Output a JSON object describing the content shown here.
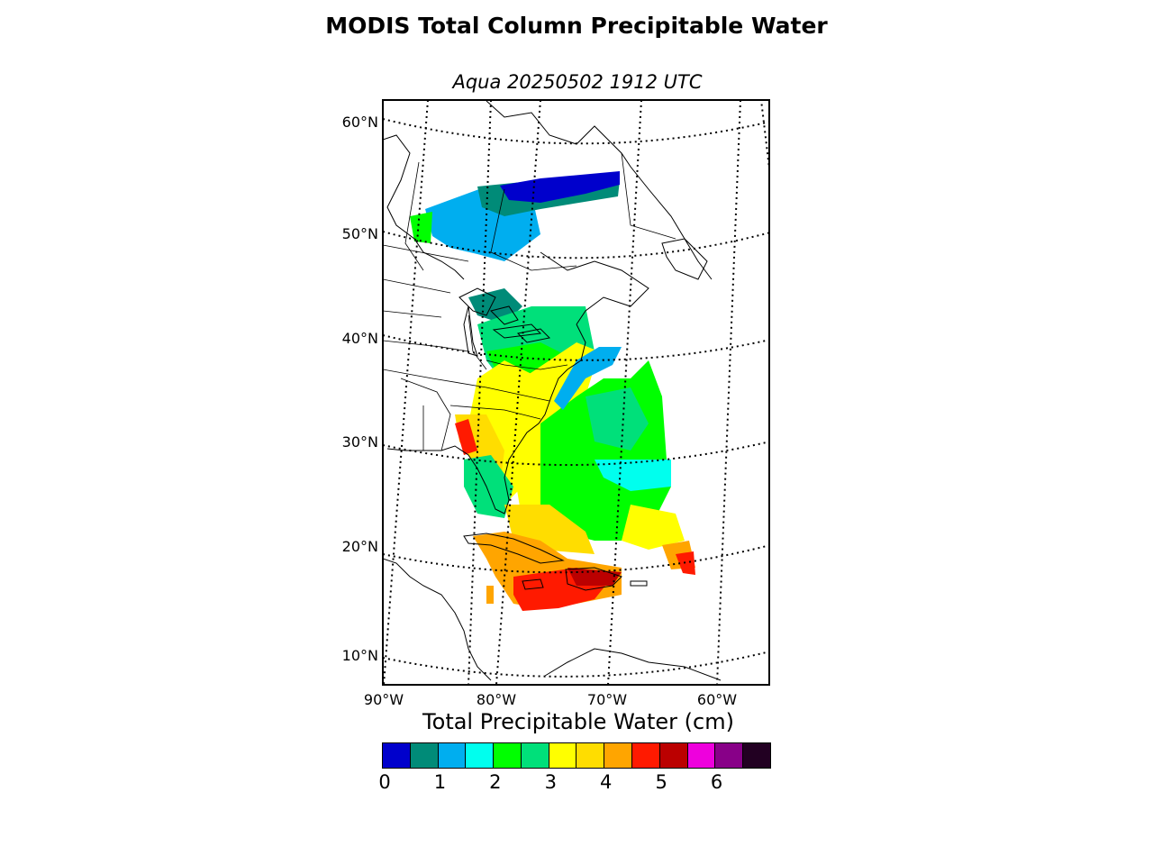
{
  "title": "MODIS Total Column Precipitable Water",
  "subtitle": "Aqua 20250502 1912 UTC",
  "map": {
    "lat_labels": [
      "60°N",
      "50°N",
      "40°N",
      "30°N",
      "20°N",
      "10°N"
    ],
    "lon_labels": [
      "90°W",
      "80°W",
      "70°W",
      "60°W"
    ]
  },
  "colorbar": {
    "title": "Total Precipitable Water (cm)",
    "colors": [
      "#0000cc",
      "#008b78",
      "#00aeef",
      "#00ffee",
      "#00ff00",
      "#00e07a",
      "#ffff00",
      "#ffdd00",
      "#ffa500",
      "#ff1a00",
      "#bb0000",
      "#ee00dd",
      "#880088",
      "#220022"
    ],
    "ticks": [
      "0",
      "1",
      "2",
      "3",
      "4",
      "5",
      "6"
    ]
  }
}
